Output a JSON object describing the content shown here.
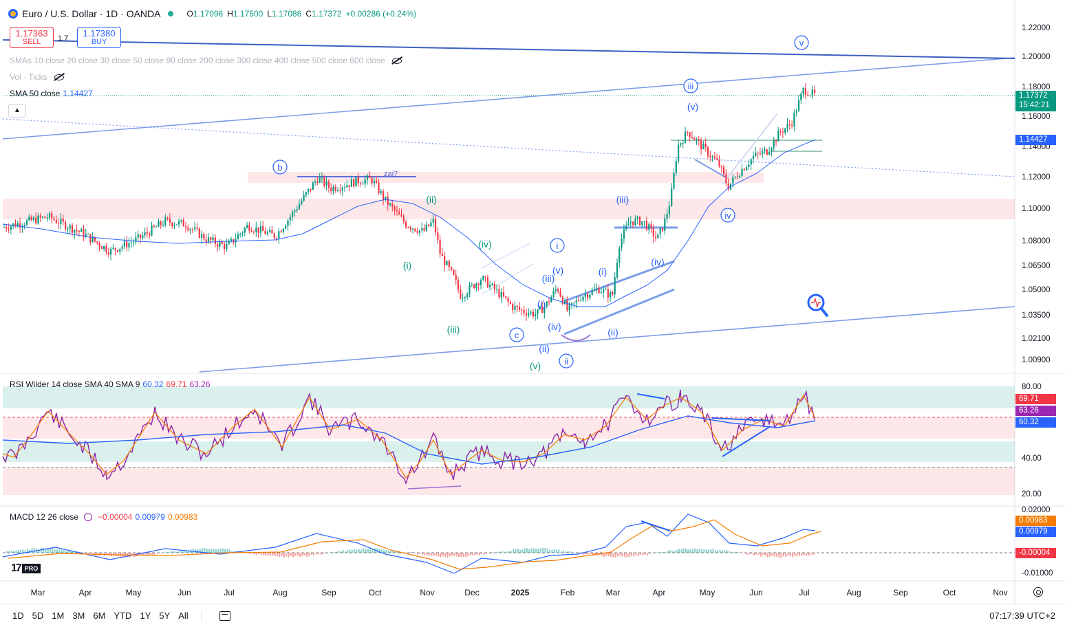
{
  "header": {
    "symbol_title": "Euro / U.S. Dollar · 1D · OANDA",
    "ohlc": [
      {
        "label": "O",
        "value": "1.17096"
      },
      {
        "label": "H",
        "value": "1.17500"
      },
      {
        "label": "L",
        "value": "1.17086"
      },
      {
        "label": "C",
        "value": "1.17372"
      }
    ],
    "change": "+0.00286 (+0.24%)"
  },
  "trade": {
    "sell_price": "1.17363",
    "sell_label": "SELL",
    "spread": "1.7",
    "buy_price": "1.17380",
    "buy_label": "BUY"
  },
  "legends": {
    "smas": "SMAs 10 close 20 close 30 close 50 close 90 close 200 close 300 close 400 close 500 close 600 close",
    "vol": "Vol · Ticks",
    "sma50_label": "SMA 50 close",
    "sma50_value": "1.14427",
    "rsi_label": "RSI Wilder 14 close SMA 40 SMA 9",
    "rsi_v1": "60.32",
    "rsi_v2": "69.71",
    "rsi_v3": "63.26",
    "macd_label": "MACD 12 26 close",
    "macd_v1": "−0.00004",
    "macd_v2": "0.00979",
    "macd_v3": "0.00983"
  },
  "price_axis": {
    "ticks": [
      "1.22000",
      "1.20000",
      "1.18000",
      "1.16000",
      "1.14000",
      "1.12000",
      "1.10000",
      "1.08000",
      "1.06500",
      "1.05000",
      "1.03500",
      "1.02100",
      "1.00900"
    ],
    "last_price": "1.17372",
    "countdown": "15:42:21",
    "sma_tag": "1.14427"
  },
  "rsi_axis": {
    "ticks": [
      "80.00",
      "40.00",
      "20.00"
    ],
    "tags": [
      "69.71",
      "63.26",
      "60.32"
    ]
  },
  "macd_axis": {
    "ticks": [
      "0.02000",
      "-0.01000"
    ],
    "tags": [
      "0.00983",
      "0.00979",
      "-0.00004"
    ]
  },
  "time_axis": [
    "Mar",
    "Apr",
    "May",
    "Jun",
    "Jul",
    "Aug",
    "Sep",
    "Oct",
    "Nov",
    "Dec",
    "2025",
    "Feb",
    "Mar",
    "Apr",
    "May",
    "Jun",
    "Jul",
    "Aug",
    "Sep",
    "Oct",
    "Nov"
  ],
  "wave_labels": {
    "b": "b",
    "zaj": "zaj?",
    "ii_top": "(ii)",
    "i_left": "(i)",
    "iii_left": "(iii)",
    "iv_left": "(iv)",
    "v_bottom": "(v)",
    "c": "c",
    "ii_b": "(ii)",
    "ii_circle": "ii",
    "i_circle": "i",
    "v_small": "(v)",
    "iii_small": "(iii)",
    "i_small": "(i)",
    "iv_small": "(iv)",
    "i_mar": "(i)",
    "ii_mar": "(ii)",
    "iii_apr": "(iii)",
    "iv_apr": "(iv)",
    "iii_circle": "iii",
    "v_may": "(v)",
    "iv_circle": "iv",
    "v_circle": "v"
  },
  "bottom_bar": {
    "ranges": [
      "1D",
      "5D",
      "1M",
      "3M",
      "6M",
      "YTD",
      "1Y",
      "5Y",
      "All"
    ],
    "clock": "07:17:39 UTC+2"
  },
  "logo_text": "PRO",
  "chart_data": {
    "type": "line",
    "title": "Euro / U.S. Dollar · 1D · OANDA",
    "x": [
      "Mar",
      "Apr",
      "May",
      "Jun",
      "Jul",
      "Aug",
      "Sep",
      "Oct",
      "Nov",
      "Dec",
      "2025",
      "Feb",
      "Mar",
      "Apr",
      "May",
      "Jun",
      "Jul"
    ],
    "series": [
      {
        "name": "close",
        "values": [
          1.085,
          1.08,
          1.072,
          1.078,
          1.082,
          1.092,
          1.112,
          1.112,
          1.085,
          1.048,
          1.03,
          1.035,
          1.05,
          1.085,
          1.125,
          1.135,
          1.17
        ]
      },
      {
        "name": "SMA 50 close",
        "values": [
          1.088,
          1.085,
          1.08,
          1.078,
          1.079,
          1.084,
          1.1,
          1.107,
          1.095,
          1.07,
          1.048,
          1.042,
          1.04,
          1.058,
          1.1,
          1.13,
          1.144
        ]
      }
    ],
    "ylim": [
      1.0,
      1.225
    ]
  },
  "colors": {
    "up": "#089981",
    "down": "#f23645",
    "sma": "#2962ff",
    "wave_green": "#089981",
    "wave_blue": "#2962ff",
    "rsi": "#7e22ce",
    "rsi_ma": "#f57c00"
  }
}
